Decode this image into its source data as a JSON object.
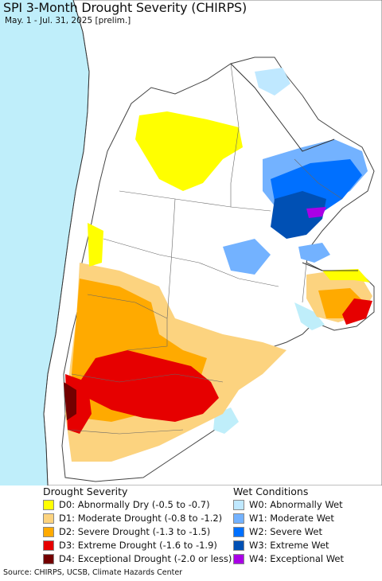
{
  "header": {
    "title": "SPI 3-Month Drought Severity (CHIRPS)",
    "subtitle": "May. 1 - Jul. 31, 2025 [prelim.]"
  },
  "colors": {
    "ocean": "#bfeefa",
    "land": "#ffffff",
    "outside": "#ffffff",
    "border": "#555555"
  },
  "legend": {
    "drought": {
      "heading": "Drought Severity",
      "items": [
        {
          "code": "D0",
          "label": "D0: Abnormally Dry (-0.5 to -0.7)",
          "color": "#ffff00"
        },
        {
          "code": "D1",
          "label": "D1: Moderate Drought (-0.8 to -1.2)",
          "color": "#fcd37f"
        },
        {
          "code": "D2",
          "label": "D2: Severe Drought (-1.3 to -1.5)",
          "color": "#ffaa00"
        },
        {
          "code": "D3",
          "label": "D3: Extreme Drought (-1.6 to -1.9)",
          "color": "#e60000"
        },
        {
          "code": "D4",
          "label": "D4: Exceptional Drought (-2.0 or less)",
          "color": "#730000"
        }
      ]
    },
    "wet": {
      "heading": "Wet Conditions",
      "items": [
        {
          "code": "W0",
          "label": "W0: Abnormally Wet",
          "color": "#bfe8ff"
        },
        {
          "code": "W1",
          "label": "W1: Moderate Wet",
          "color": "#73b2ff"
        },
        {
          "code": "W2",
          "label": "W2: Severe Wet",
          "color": "#0070ff"
        },
        {
          "code": "W3",
          "label": "W3: Extreme Wet",
          "color": "#0050b4"
        },
        {
          "code": "W4",
          "label": "W4: Exceptional Wet",
          "color": "#a900e6"
        }
      ]
    }
  },
  "footer": {
    "source": "Source: CHIRPS, UCSB, Climate Hazards Center"
  }
}
